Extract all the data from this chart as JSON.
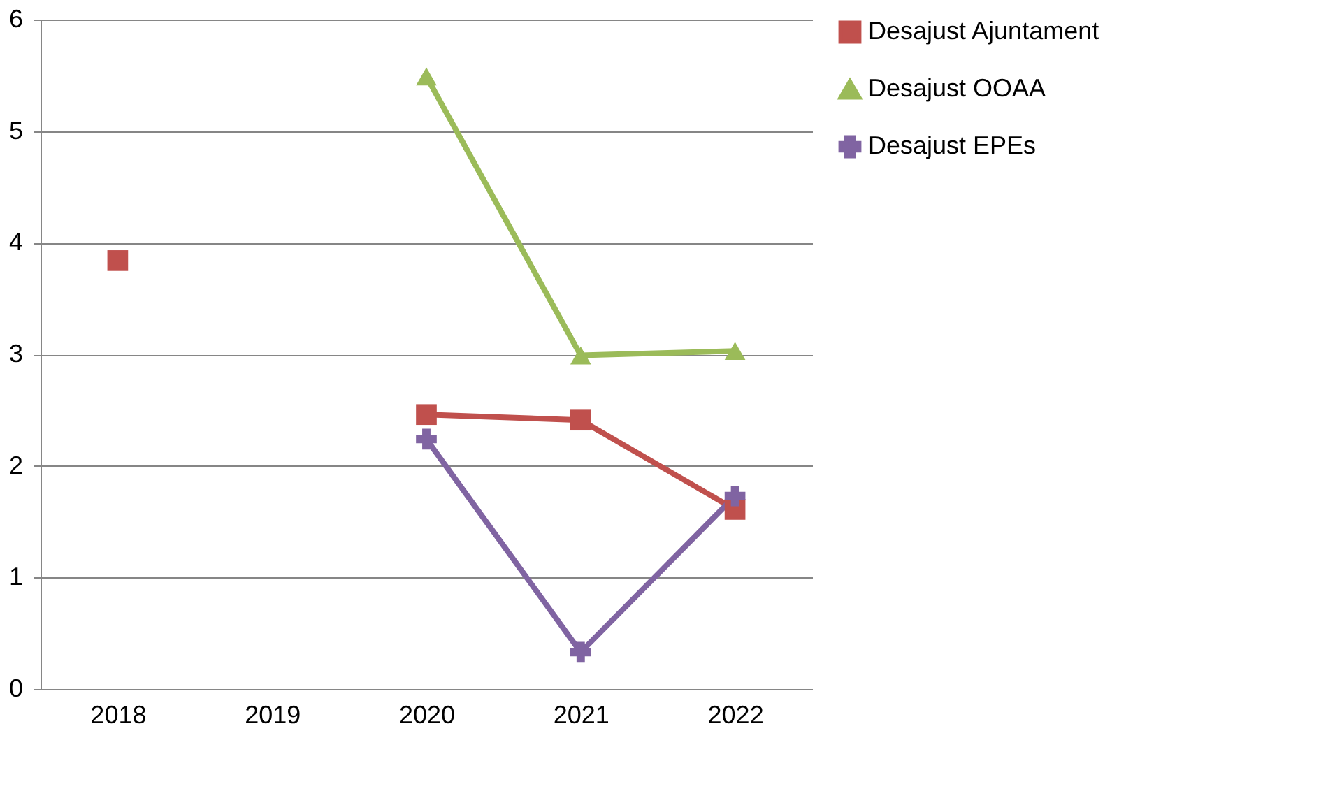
{
  "chart_data": {
    "type": "line",
    "categories": [
      "2018",
      "2019",
      "2020",
      "2021",
      "2022"
    ],
    "series": [
      {
        "name": "Desajust Ajuntament",
        "color": "#c0504d",
        "marker": "square",
        "values": [
          3.84,
          null,
          2.46,
          2.41,
          1.61
        ]
      },
      {
        "name": "Desajust OOAA",
        "color": "#9bbb59",
        "marker": "triangle",
        "values": [
          null,
          null,
          5.49,
          2.99,
          3.03
        ]
      },
      {
        "name": "Desajust EPEs",
        "color": "#8064a2",
        "marker": "cross",
        "values": [
          null,
          null,
          2.24,
          0.33,
          1.73
        ]
      }
    ],
    "ylim": [
      0,
      6
    ],
    "yticks": [
      0,
      1,
      2,
      3,
      4,
      5,
      6
    ],
    "grid": "y",
    "legend": "right",
    "line_style": "solid"
  }
}
